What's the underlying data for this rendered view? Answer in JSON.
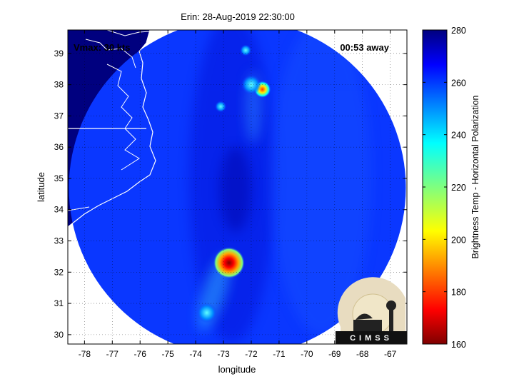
{
  "title": "Erin: 28-Aug-2019 22:30:00",
  "annotations": {
    "vmax": "Vmax: 30 kts",
    "time_away": "00:53 away"
  },
  "axes": {
    "xlabel": "longitude",
    "ylabel": "latitude",
    "x_ticks": [
      -78,
      -77,
      -76,
      -75,
      -74,
      -73,
      -72,
      -71,
      -70,
      -69,
      -68,
      -67
    ],
    "y_ticks": [
      30,
      31,
      32,
      33,
      34,
      35,
      36,
      37,
      38,
      39
    ],
    "xlim": [
      -78.6,
      -66.4
    ],
    "ylim": [
      29.7,
      39.75
    ],
    "grid": true
  },
  "colorbar": {
    "label": "Brightness Temp - Horizontal Polarization",
    "range": [
      160,
      280
    ],
    "ticks": [
      160,
      180,
      200,
      220,
      240,
      260,
      280
    ],
    "colormap": "jet"
  },
  "swath": {
    "center_lon": -72.5,
    "center_lat": 34.7,
    "background_value": 264,
    "features": [
      {
        "lon": -72.8,
        "lat": 32.3,
        "value": 175
      },
      {
        "lon": -71.6,
        "lat": 37.85,
        "value": 192
      },
      {
        "lon": -72.0,
        "lat": 38.0,
        "value": 238
      },
      {
        "lon": -72.2,
        "lat": 39.1,
        "value": 245
      },
      {
        "lon": -73.1,
        "lat": 37.3,
        "value": 248
      },
      {
        "lon": -73.6,
        "lat": 30.7,
        "value": 240
      }
    ]
  },
  "colors": {
    "land": "#00007f",
    "ocean": "#0a37ff",
    "coastline": "#ffffff"
  },
  "logo": {
    "text": "CIMSS"
  }
}
